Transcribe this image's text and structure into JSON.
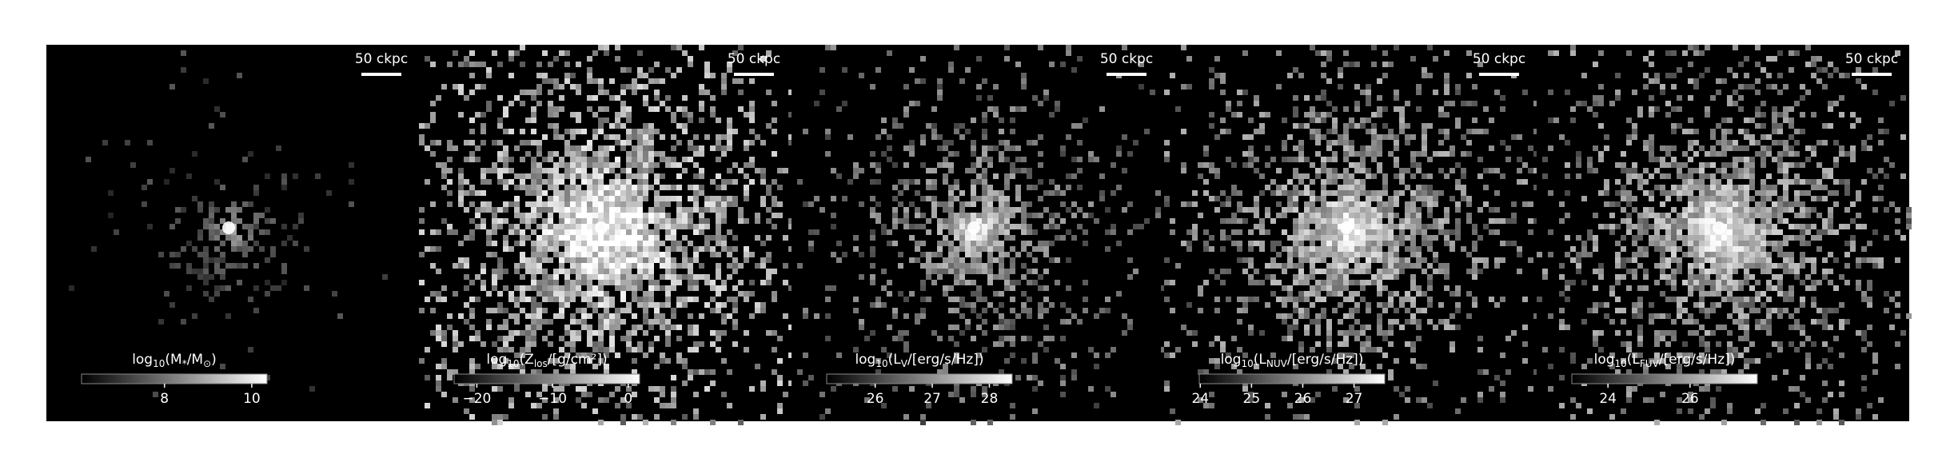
{
  "panels": [
    {
      "colorbar_label": [
        {
          "text": "log",
          "sub": false
        },
        {
          "text": "10",
          "sub": true
        },
        {
          "text": "(M",
          "sub": false
        },
        {
          "text": "*",
          "sub": true
        },
        {
          "text": "/M",
          "sub": false
        },
        {
          "text": "⊙",
          "sub": true
        },
        {
          "text": ")",
          "sub": false
        }
      ],
      "colorbar_lim": [
        6.1,
        10.35
      ],
      "colorbar_ticks": [
        8,
        10
      ],
      "scalebar_label": "50 ckpc"
    },
    {
      "colorbar_label": [
        {
          "text": "log",
          "sub": false
        },
        {
          "text": "10",
          "sub": true
        },
        {
          "text": "(Z",
          "sub": false
        },
        {
          "text": "los",
          "sub": true
        },
        {
          "text": "/[g/cm²])",
          "sub": false
        }
      ],
      "colorbar_lim": [
        -23,
        1.5
      ],
      "colorbar_ticks": [
        {
          "value": -20,
          "label": "−20"
        },
        {
          "value": -10,
          "label": "−10"
        },
        0
      ],
      "scalebar_label": "50 ckpc"
    },
    {
      "colorbar_label": [
        {
          "text": "log",
          "sub": false
        },
        {
          "text": "10",
          "sub": true
        },
        {
          "text": "(L",
          "sub": false
        },
        {
          "text": "V",
          "sub": true
        },
        {
          "text": "/[erg/s/Hz])",
          "sub": false
        }
      ],
      "colorbar_lim": [
        25.15,
        28.4
      ],
      "colorbar_ticks": [
        26,
        27,
        28
      ],
      "scalebar_label": "50 ckpc"
    },
    {
      "colorbar_label": [
        {
          "text": "log",
          "sub": false
        },
        {
          "text": "10",
          "sub": true
        },
        {
          "text": "(L",
          "sub": false
        },
        {
          "text": "NUV",
          "sub": true
        },
        {
          "text": "/[erg/s/Hz])",
          "sub": false
        }
      ],
      "colorbar_lim": [
        23.98,
        27.6
      ],
      "colorbar_ticks": [
        24,
        25,
        26,
        27
      ],
      "scalebar_label": "50 ckpc"
    },
    {
      "colorbar_label": [
        {
          "text": "log",
          "sub": false
        },
        {
          "text": "10",
          "sub": true
        },
        {
          "text": "(L",
          "sub": false
        },
        {
          "text": "FUV",
          "sub": true
        },
        {
          "text": "/[erg/s/Hz])",
          "sub": false
        }
      ],
      "colorbar_lim": [
        23.12,
        27.64
      ],
      "colorbar_ticks": [
        24,
        26
      ],
      "scalebar_label": "50 ckpc"
    }
  ]
}
